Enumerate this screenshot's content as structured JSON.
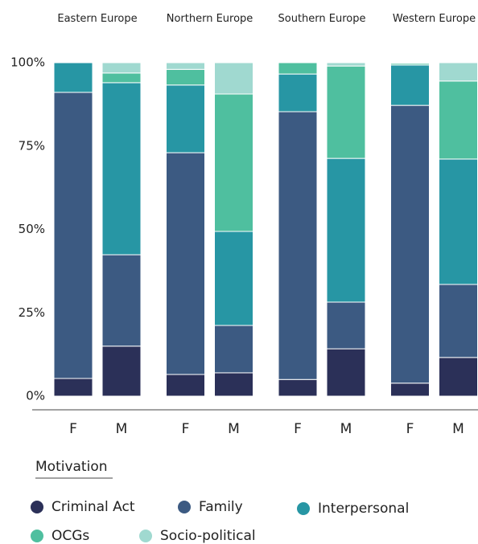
{
  "chart_data": {
    "type": "stacked_bar",
    "groups": [
      "Eastern Europe",
      "Northern Europe",
      "Southern Europe",
      "Western Europe"
    ],
    "categories": [
      "F",
      "M",
      "F",
      "M",
      "F",
      "M",
      "F",
      "M"
    ],
    "legend_title": "Motivation",
    "series": [
      {
        "name": "Criminal Act",
        "color": "#2b3058",
        "values": [
          5.3,
          15,
          6.5,
          7,
          5,
          14.2,
          3.9,
          11.6
        ]
      },
      {
        "name": "Family",
        "color": "#3c5a82",
        "values": [
          85.8,
          27.4,
          66.5,
          14.2,
          80.3,
          14,
          83.3,
          21.9
        ]
      },
      {
        "name": "Interpersonal",
        "color": "#2796a4",
        "values": [
          8.9,
          51.6,
          20.3,
          28.2,
          11.3,
          43.1,
          12.1,
          37.6
        ]
      },
      {
        "name": "OCGs",
        "color": "#4fbf9f",
        "values": [
          0,
          2.9,
          4.7,
          41.2,
          3.4,
          27.7,
          0.5,
          23.4
        ]
      },
      {
        "name": "Socio-political",
        "color": "#a0d9d0",
        "values": [
          0,
          3.1,
          2,
          9.4,
          0,
          1,
          0.2,
          5.5
        ]
      }
    ],
    "ylim": [
      0,
      100
    ],
    "yticks": [
      {
        "value": 0,
        "label": "0%"
      },
      {
        "value": 25,
        "label": "25%"
      },
      {
        "value": 50,
        "label": "50%"
      },
      {
        "value": 75,
        "label": "75%"
      },
      {
        "value": 100,
        "label": "100%"
      }
    ]
  }
}
